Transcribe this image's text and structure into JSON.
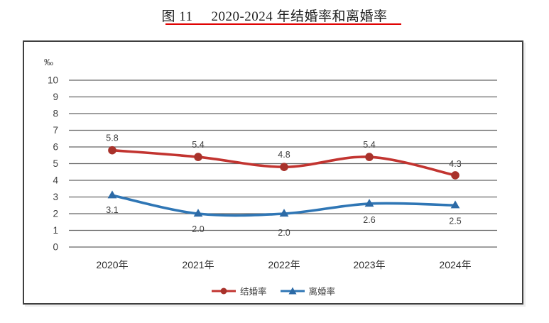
{
  "header": {
    "figure_label": "图 11",
    "underline_color": "#e00000"
  },
  "chart_data": {
    "type": "line",
    "title": "2020-2024 年结婚率和离婚率",
    "ylabel": "‰",
    "xlabel": "",
    "ylim": [
      0,
      10
    ],
    "yticks": [
      0,
      1,
      2,
      3,
      4,
      5,
      6,
      7,
      8,
      9,
      10
    ],
    "grid": "horizontal",
    "legend_position": "bottom",
    "categories": [
      "2020年",
      "2021年",
      "2022年",
      "2023年",
      "2024年"
    ],
    "series": [
      {
        "name": "结婚率",
        "marker": "circle",
        "line_color": "#c23430",
        "marker_color": "#a8322b",
        "label_position": "above",
        "values": [
          5.8,
          5.4,
          4.8,
          5.4,
          4.3
        ],
        "labels": [
          "5.8",
          "5.4",
          "4.8",
          "5.4",
          "4.3"
        ]
      },
      {
        "name": "离婚率",
        "marker": "triangle",
        "line_color": "#2f76b5",
        "marker_color": "#2c6aa6",
        "label_position": "below",
        "values": [
          3.1,
          2.0,
          2.0,
          2.6,
          2.5
        ],
        "labels": [
          "3.1",
          "2.0",
          "2.0",
          "2.6",
          "2.5"
        ]
      }
    ],
    "colors": {
      "gridline": "#666666",
      "axis_text": "#3d3d3d",
      "data_label": "#404040",
      "box_border": "#3f3f3f"
    }
  }
}
